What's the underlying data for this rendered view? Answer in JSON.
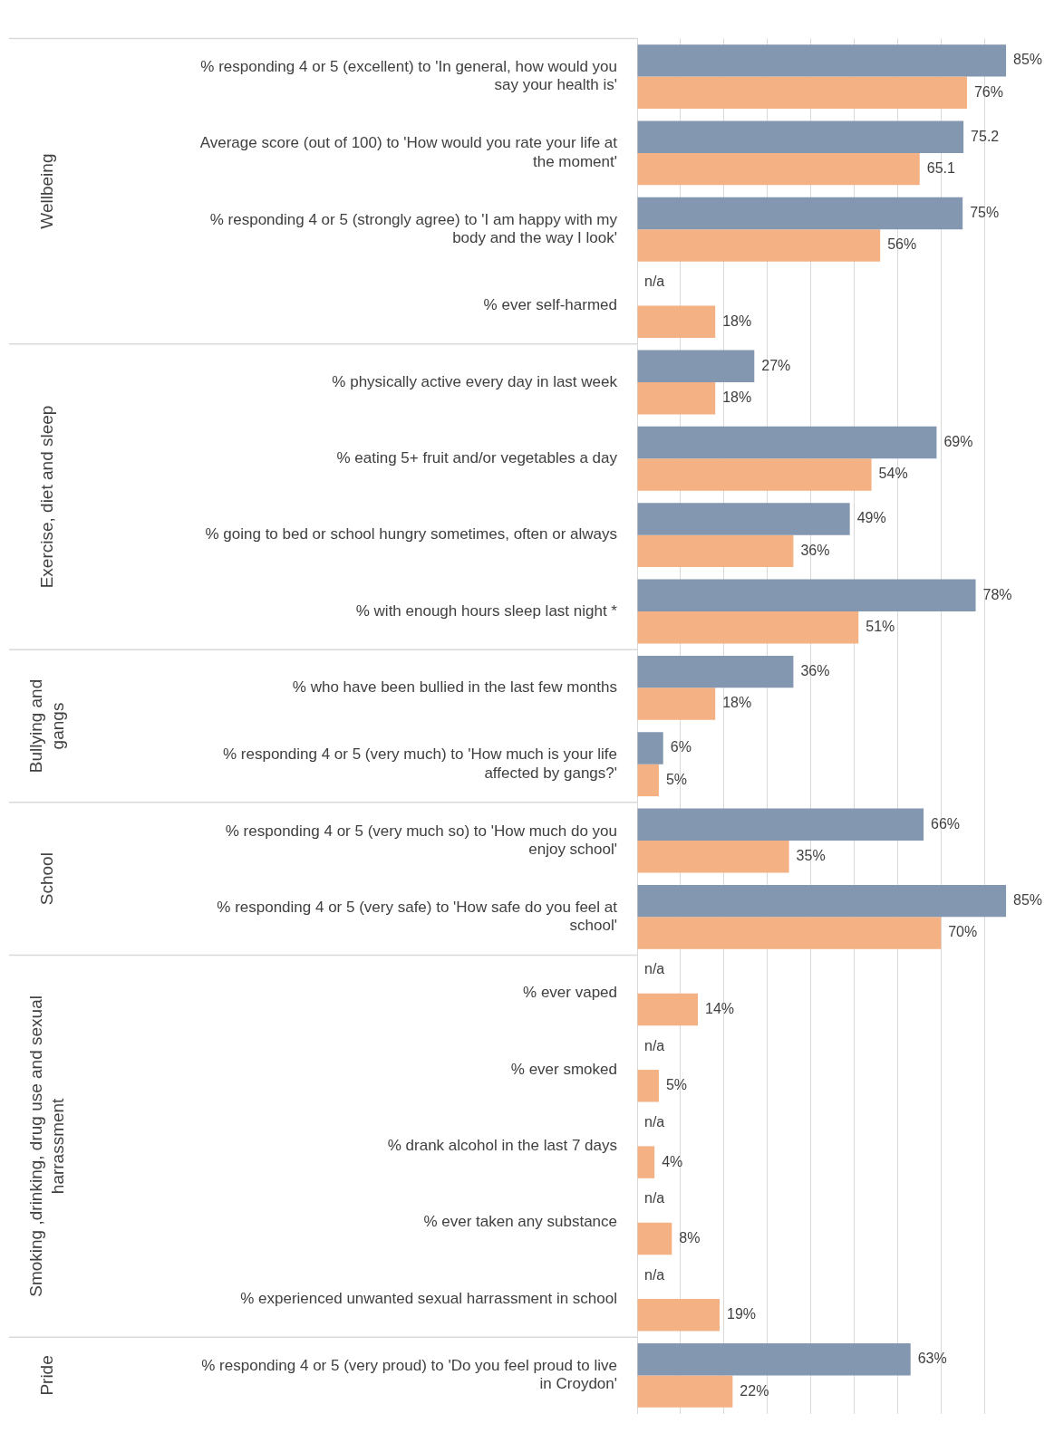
{
  "chart_data": {
    "type": "bar",
    "orientation": "horizontal",
    "categories": [
      "% responding 4 or 5 (excellent) to 'In general, how would you say your health is'",
      "Average score (out of 100) to 'How would you rate your life at the moment'",
      "% responding 4 or 5 (strongly agree) to 'I am happy with my body and the way I look'",
      "% ever self-harmed",
      "% physically active every day in last week",
      "% eating 5+ fruit and/or vegetables a day",
      "% going to bed or school hungry sometimes, often or always",
      "% with enough hours sleep last night *",
      "% who have been bullied in the last few months",
      "% responding 4 or 5 (very much) to 'How much is your life affected by gangs?'",
      "% responding 4 or 5 (very much so) to 'How much do you enjoy school'",
      "% responding 4 or 5 (very safe) to 'How safe do you feel at school'",
      "% ever vaped",
      "% ever smoked",
      "% drank alcohol in the last 7 days",
      "% ever taken any substance",
      "% experienced unwanted sexual harrassment in school",
      "% responding 4 or 5 (very proud) to 'Do you feel proud to live in Croydon'"
    ],
    "series": [
      {
        "color": "#8497b0",
        "values": [
          85,
          75.2,
          75,
          null,
          27,
          69,
          49,
          78,
          36,
          6,
          66,
          85,
          null,
          null,
          null,
          null,
          null,
          63
        ],
        "value_labels": [
          "85%",
          "75.2",
          "75%",
          "n/a",
          "27%",
          "69%",
          "49%",
          "78%",
          "36%",
          "6%",
          "66%",
          "85%",
          "n/a",
          "n/a",
          "n/a",
          "n/a",
          "n/a",
          "63%"
        ]
      },
      {
        "color": "#f4b183",
        "values": [
          76,
          65.1,
          56,
          18,
          18,
          54,
          36,
          51,
          18,
          5,
          35,
          70,
          14,
          5,
          4,
          8,
          19,
          22
        ],
        "value_labels": [
          "76%",
          "65.1",
          "56%",
          "18%",
          "18%",
          "54%",
          "36%",
          "51%",
          "18%",
          "5%",
          "35%",
          "70%",
          "14%",
          "5%",
          "4%",
          "8%",
          "19%",
          "22%"
        ]
      }
    ],
    "xticks": [
      {
        "value": 0,
        "label": null
      },
      {
        "value": 10,
        "label": null
      },
      {
        "value": 20,
        "label": null
      },
      {
        "value": 30,
        "label": null
      },
      {
        "value": 40,
        "label": null
      },
      {
        "value": 50,
        "label": null
      },
      {
        "value": 60,
        "label": null
      },
      {
        "value": 70,
        "label": null
      },
      {
        "value": 80,
        "label": null
      }
    ],
    "tick_labels": "y",
    "grid": "x",
    "legend": false,
    "annotations": [
      "Wellbeing",
      "Exercise, diet and sleep",
      "Bullying and gangs",
      "School",
      "Smoking ,drinking, drug use and sexual harrassment",
      "Pride"
    ]
  }
}
